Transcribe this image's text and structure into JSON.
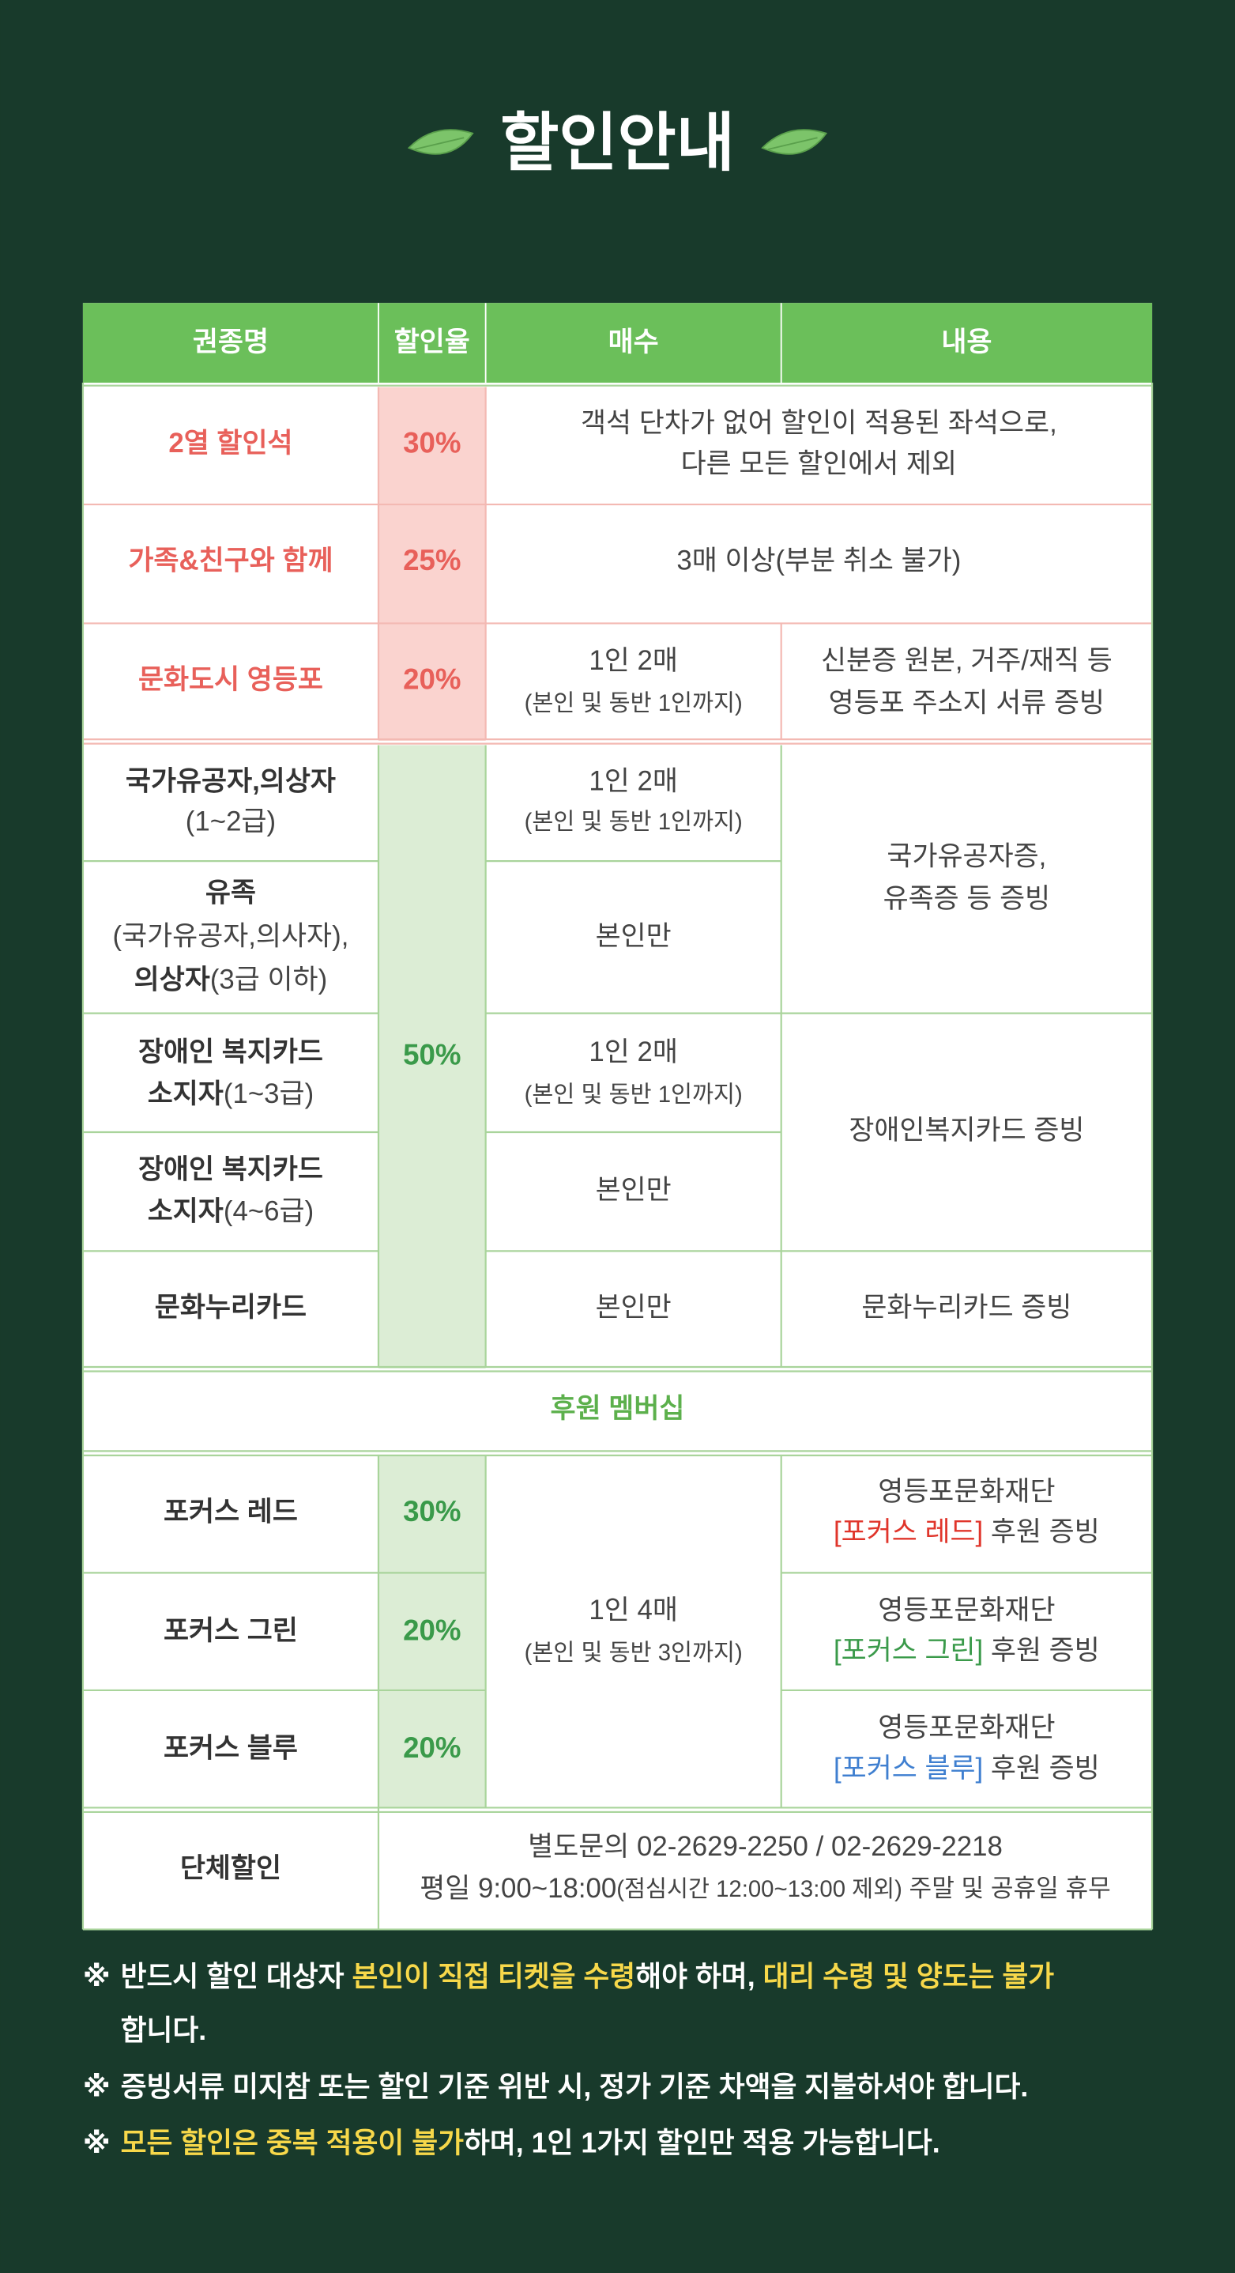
{
  "title": "할인안내",
  "table": {
    "headers": [
      "권종명",
      "할인율",
      "매수",
      "내용"
    ],
    "rows": [
      {
        "name": "2열 할인석",
        "rate": "30%",
        "detail": [
          "객석 단차가 없어 할인이 적용된 좌석으로,",
          "다른 모든 할인에서 제외"
        ]
      },
      {
        "name": "가족&친구와 함께",
        "rate": "25%",
        "detail": [
          "3매 이상(부분 취소 불가)"
        ]
      },
      {
        "name": "문화도시 영등포",
        "rate": "20%",
        "count": [
          "1인 2매",
          "(본인 및 동반 1인까지)"
        ],
        "detail": [
          "신분증 원본, 거주/재직 등",
          "영등포 주소지 서류 증빙"
        ]
      }
    ],
    "special": {
      "rate": "50%",
      "rows": [
        {
          "name": [
            [
              "국가유공자,의상자"
            ],
            [
              "(1~2급)"
            ]
          ],
          "count": [
            "1인 2매",
            "(본인 및 동반 1인까지)"
          ]
        },
        {
          "name": [
            [
              "유족"
            ],
            [
              "(국가유공자,의사자),"
            ],
            [
              "의상자",
              "(3급 이하)"
            ]
          ],
          "count": [
            "본인만"
          ]
        },
        {
          "name": [
            [
              "장애인 복지카드"
            ],
            [
              "소지자",
              "(1~3급)"
            ]
          ],
          "count": [
            "1인 2매",
            "(본인 및 동반 1인까지)"
          ]
        },
        {
          "name": [
            [
              "장애인 복지카드"
            ],
            [
              "소지자",
              "(4~6급)"
            ]
          ],
          "count": [
            "본인만"
          ]
        },
        {
          "name": [
            [
              "문화누리카드"
            ]
          ],
          "count": [
            "본인만"
          ]
        }
      ],
      "details": [
        [
          "국가유공자증,",
          "유족증 등 증빙"
        ],
        [
          "장애인복지카드 증빙"
        ],
        [
          "문화누리카드 증빙"
        ]
      ]
    },
    "membership": {
      "title": "후원 멤버십",
      "count": [
        "1인 4매",
        "(본인 및 동반 3인까지)"
      ],
      "rows": [
        {
          "name": "포커스 레드",
          "rate": "30%",
          "org": "영등포문화재단",
          "tier": "[포커스 레드]",
          "text": " 후원 증빙"
        },
        {
          "name": "포커스 그린",
          "rate": "20%",
          "org": "영등포문화재단",
          "tier": "[포커스 그린]",
          "text": " 후원 증빙"
        },
        {
          "name": "포커스 블루",
          "rate": "20%",
          "org": "영등포문화재단",
          "tier": "[포커스 블루]",
          "text": " 후원 증빙"
        }
      ]
    },
    "group": {
      "name": "단체할인",
      "contact": "별도문의 02-2629-2250 / 02-2629-2218",
      "hours": [
        "평일 9:00~18:00",
        "(점심시간 12:00~13:00 제외)",
        " 주말 및 공휴일 휴무"
      ]
    }
  },
  "notes": [
    {
      "mark": "※",
      "lines": [
        [
          "반드시 할인 대상자 ",
          "본인이 직접 티켓을 수령",
          "해야 하며, ",
          "대리 수령 및 양도는 불가"
        ],
        [
          "합니다."
        ]
      ]
    },
    {
      "mark": "※",
      "lines": [
        [
          "증빙서류 미지참 또는 할인 기준 위반 시, 정가 기준 차액을 지불하셔야 합니다."
        ]
      ]
    },
    {
      "mark": "※",
      "lines": [
        [
          "모든 할인은 중복 적용이 불가",
          "하며, 1인 1가지 할인만 적용 가능합니다."
        ]
      ]
    }
  ]
}
